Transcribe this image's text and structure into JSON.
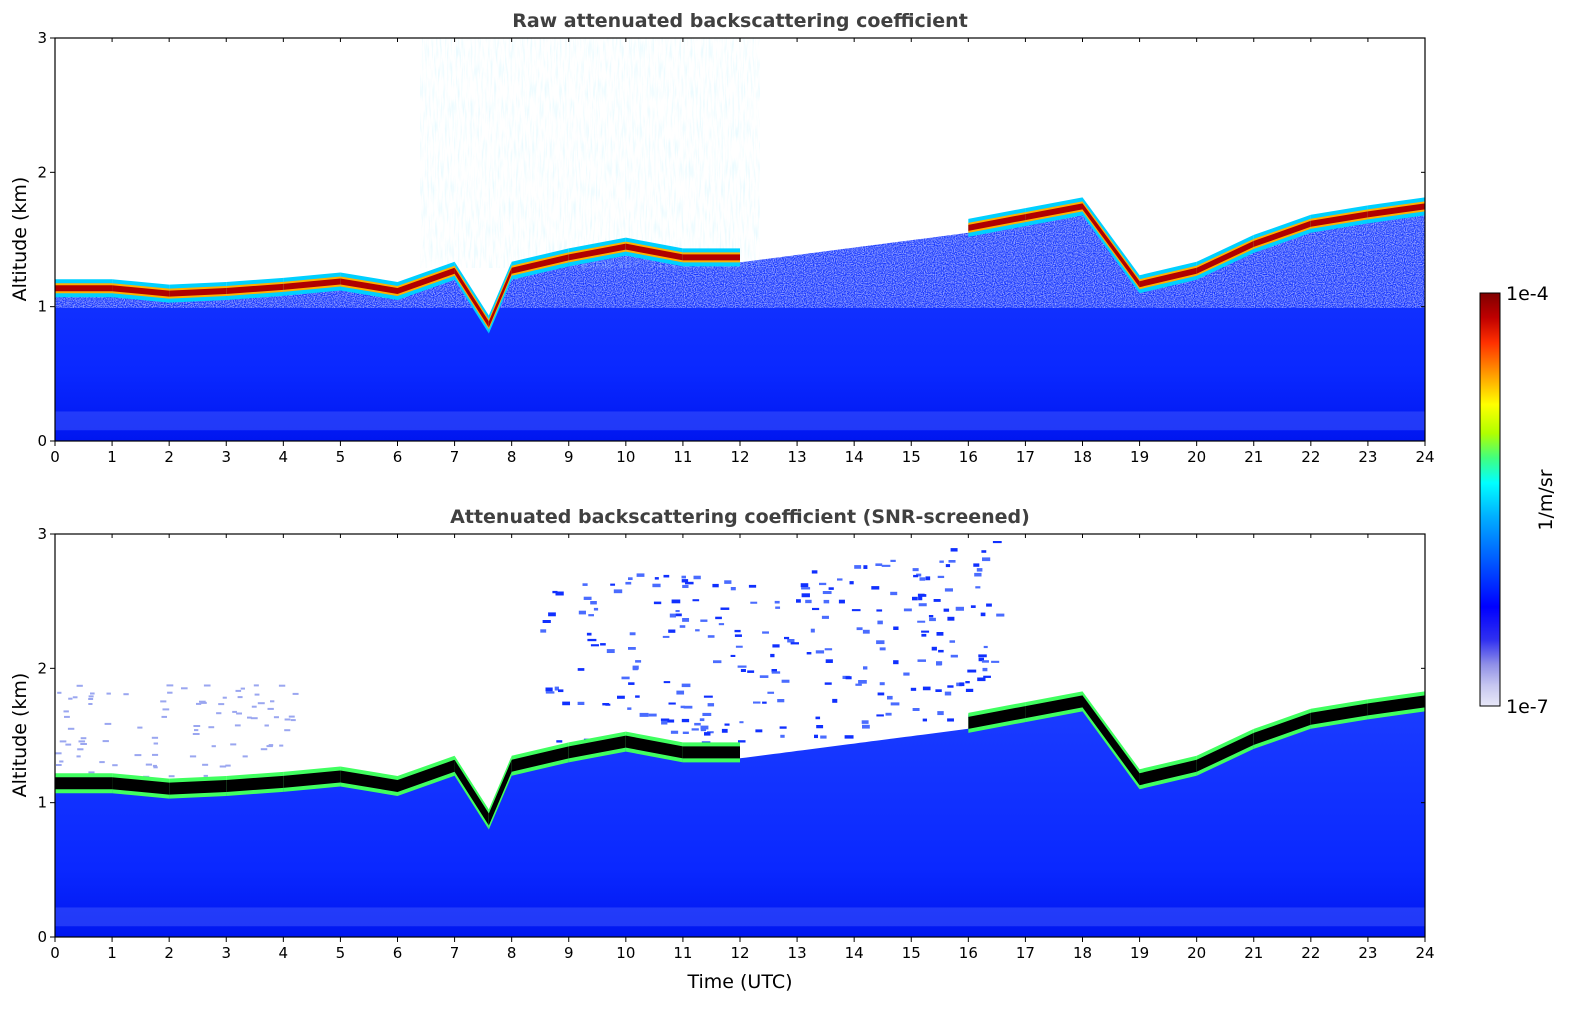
{
  "chart_data": [
    {
      "type": "heatmap",
      "title": "Raw attenuated backscattering coefficient",
      "xlabel": "",
      "ylabel": "Altitude (km)",
      "xlim": [
        0,
        24
      ],
      "ylim": [
        0,
        3
      ],
      "xticks": [
        0,
        1,
        2,
        3,
        4,
        5,
        6,
        7,
        8,
        9,
        10,
        11,
        12,
        13,
        14,
        15,
        16,
        17,
        18,
        19,
        20,
        21,
        22,
        23,
        24
      ],
      "yticks": [
        0,
        1,
        2,
        3
      ],
      "screened": false,
      "cloud_base_km": {
        "time_utc": [
          0,
          1,
          2,
          3,
          4,
          5,
          6,
          7,
          7.6,
          8,
          9,
          10,
          11,
          12,
          13,
          14,
          15,
          16,
          17,
          18,
          19,
          20,
          21,
          22,
          23,
          24
        ],
        "altitude_km": [
          1.07,
          1.07,
          1.03,
          1.05,
          1.08,
          1.12,
          1.05,
          1.2,
          0.8,
          1.2,
          1.3,
          1.38,
          1.3,
          1.3,
          null,
          null,
          null,
          1.52,
          1.6,
          1.68,
          1.1,
          1.2,
          1.4,
          1.55,
          1.62,
          1.68
        ]
      }
    },
    {
      "type": "heatmap",
      "title": "Attenuated backscattering coefficient (SNR-screened)",
      "xlabel": "Time (UTC)",
      "ylabel": "Altitude (km)",
      "xlim": [
        0,
        24
      ],
      "ylim": [
        0,
        3
      ],
      "xticks": [
        0,
        1,
        2,
        3,
        4,
        5,
        6,
        7,
        8,
        9,
        10,
        11,
        12,
        13,
        14,
        15,
        16,
        17,
        18,
        19,
        20,
        21,
        22,
        23,
        24
      ],
      "yticks": [
        0,
        1,
        2,
        3
      ],
      "screened": true,
      "cloud_base_km": {
        "time_utc": [
          0,
          1,
          2,
          3,
          4,
          5,
          6,
          7,
          7.6,
          8,
          9,
          10,
          11,
          12,
          13,
          14,
          15,
          16,
          17,
          18,
          19,
          20,
          21,
          22,
          23,
          24
        ],
        "altitude_km": [
          1.07,
          1.07,
          1.03,
          1.05,
          1.08,
          1.12,
          1.05,
          1.2,
          0.8,
          1.2,
          1.3,
          1.38,
          1.3,
          1.3,
          null,
          null,
          null,
          1.52,
          1.6,
          1.68,
          1.1,
          1.2,
          1.4,
          1.55,
          1.62,
          1.68
        ]
      }
    }
  ],
  "colorbar": {
    "label": "1/m/sr",
    "max_label": "1e-4",
    "min_label": "1e-7",
    "colors": [
      "#e8e8f8",
      "#c6c6f0",
      "#9090e8",
      "#3030f0",
      "#0000ff",
      "#0060ff",
      "#00b0ff",
      "#00ffff",
      "#40ff80",
      "#b0ff00",
      "#ffff00",
      "#ffa000",
      "#ff3000",
      "#c00000",
      "#800000"
    ]
  }
}
